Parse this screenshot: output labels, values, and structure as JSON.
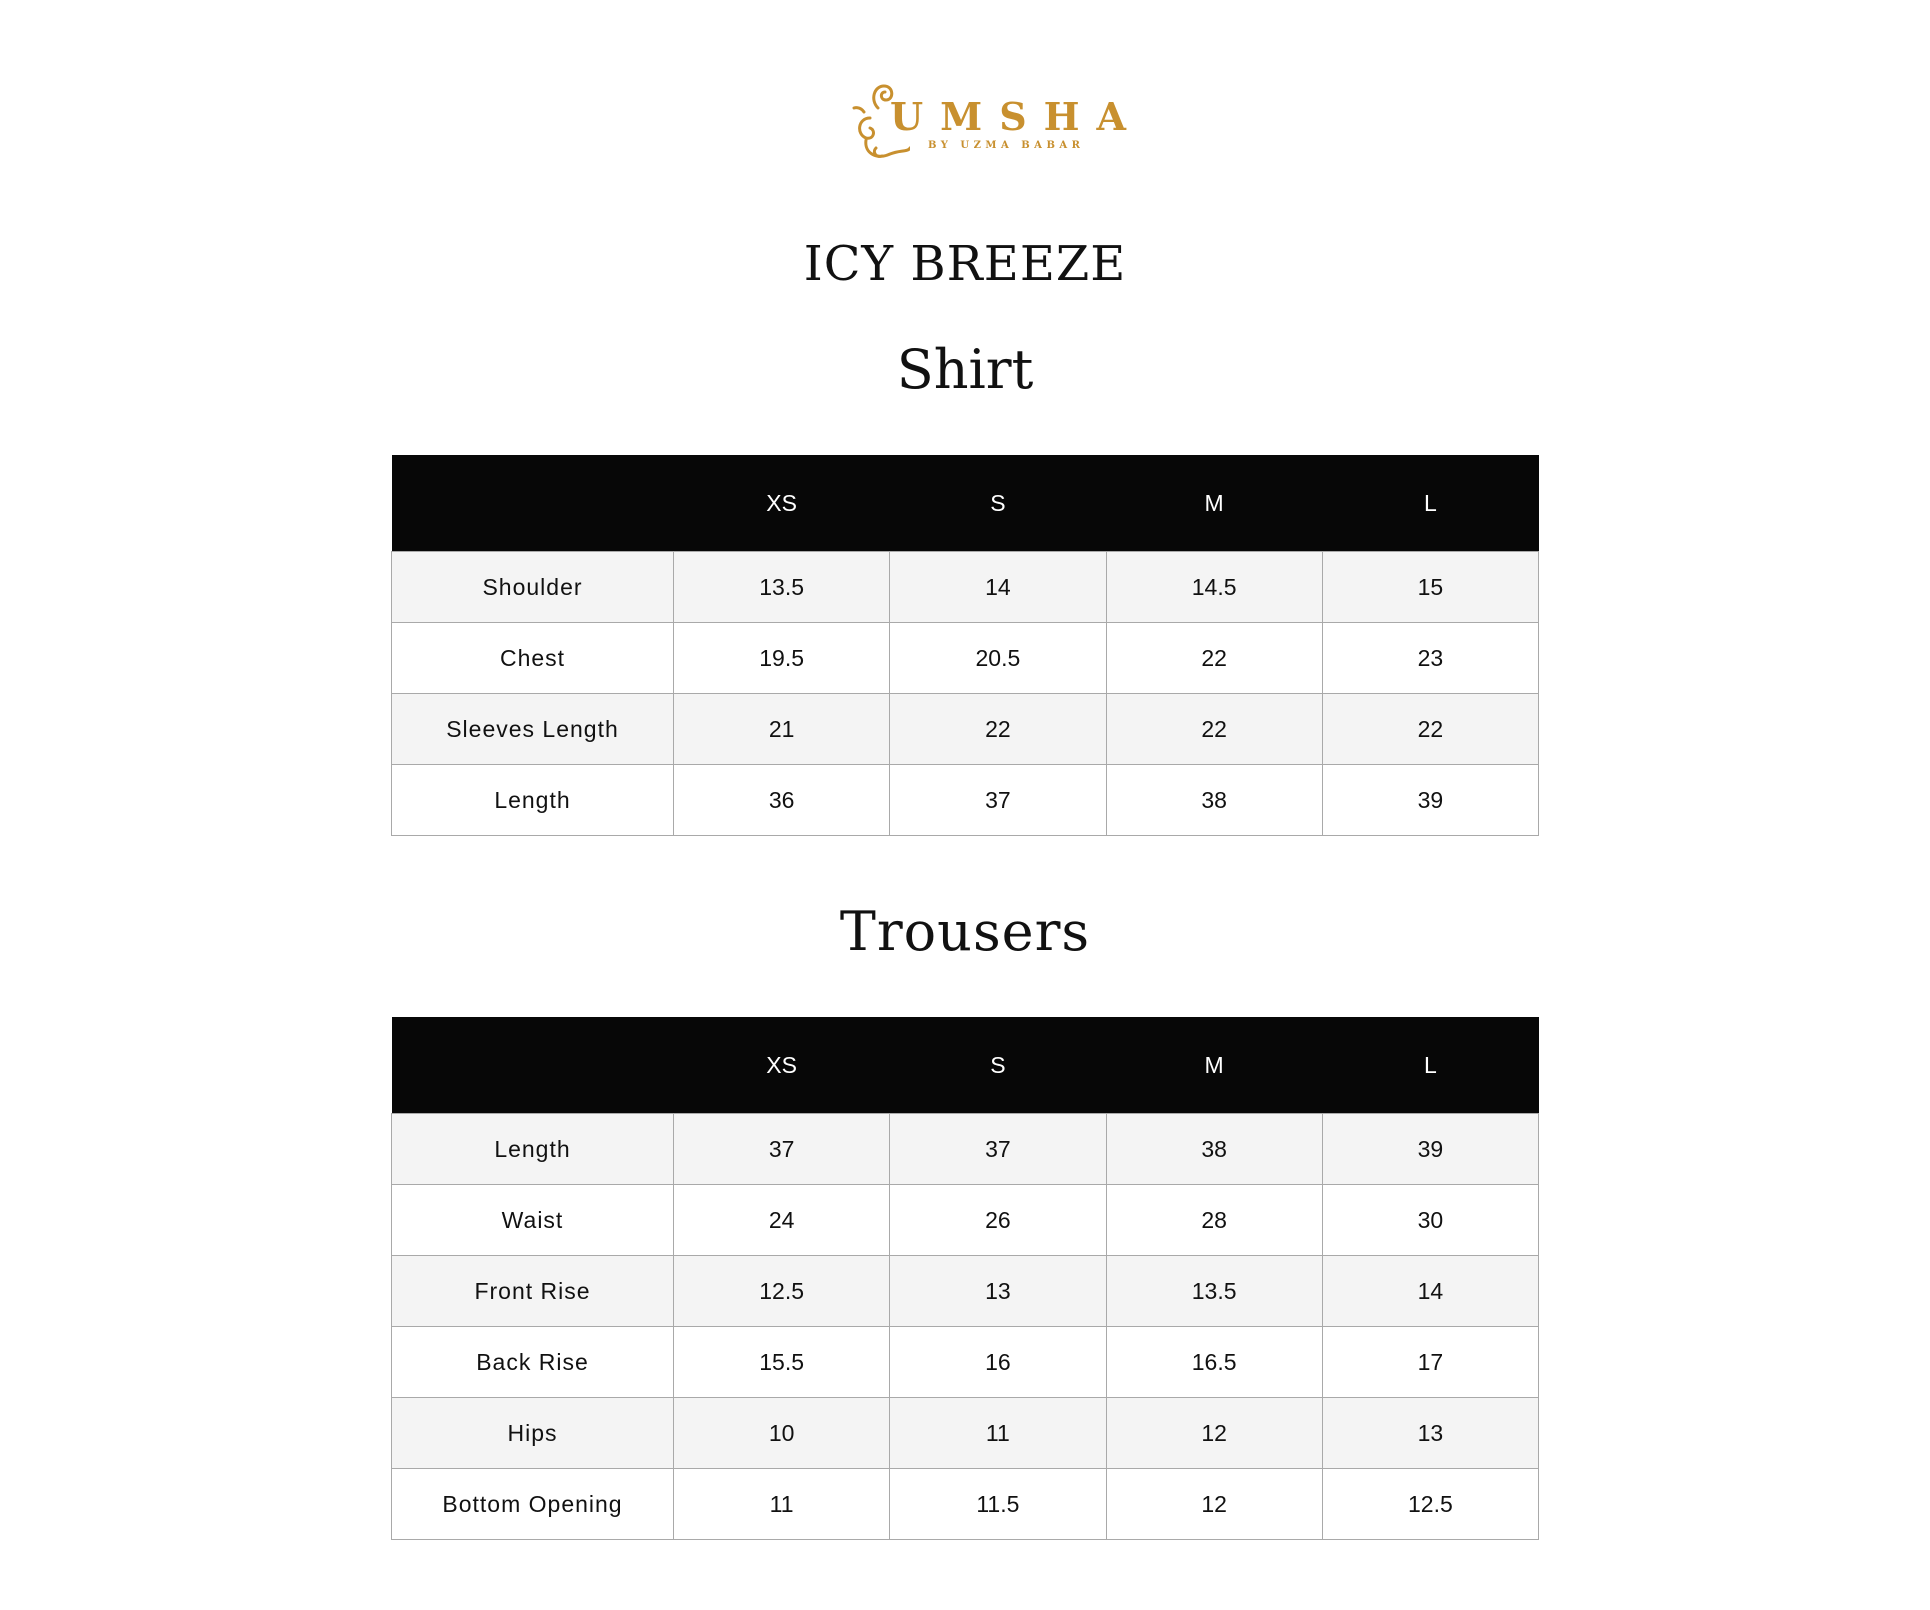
{
  "logo": {
    "brand": "UMSHA",
    "tagline": "BY UZMA BABAR",
    "color": "#c8902f"
  },
  "collection_title": "ICY BREEZE",
  "shirt": {
    "title": "Shirt",
    "headers": [
      "",
      "XS",
      "S",
      "M",
      "L"
    ],
    "rows": [
      {
        "label": "Shoulder",
        "values": [
          "13.5",
          "14",
          "14.5",
          "15"
        ]
      },
      {
        "label": "Chest",
        "values": [
          "19.5",
          "20.5",
          "22",
          "23"
        ]
      },
      {
        "label": "Sleeves Length",
        "values": [
          "21",
          "22",
          "22",
          "22"
        ]
      },
      {
        "label": "Length",
        "values": [
          "36",
          "37",
          "38",
          "39"
        ]
      }
    ]
  },
  "trousers": {
    "title": "Trousers",
    "headers": [
      "",
      "XS",
      "S",
      "M",
      "L"
    ],
    "rows": [
      {
        "label": "Length",
        "values": [
          "37",
          "37",
          "38",
          "39"
        ]
      },
      {
        "label": "Waist",
        "values": [
          "24",
          "26",
          "28",
          "30"
        ]
      },
      {
        "label": "Front Rise",
        "values": [
          "12.5",
          "13",
          "13.5",
          "14"
        ]
      },
      {
        "label": "Back Rise",
        "values": [
          "15.5",
          "16",
          "16.5",
          "17"
        ]
      },
      {
        "label": "Hips",
        "values": [
          "10",
          "11",
          "12",
          "13"
        ]
      },
      {
        "label": "Bottom Opening",
        "values": [
          "11",
          "11.5",
          "12",
          "12.5"
        ]
      }
    ]
  }
}
